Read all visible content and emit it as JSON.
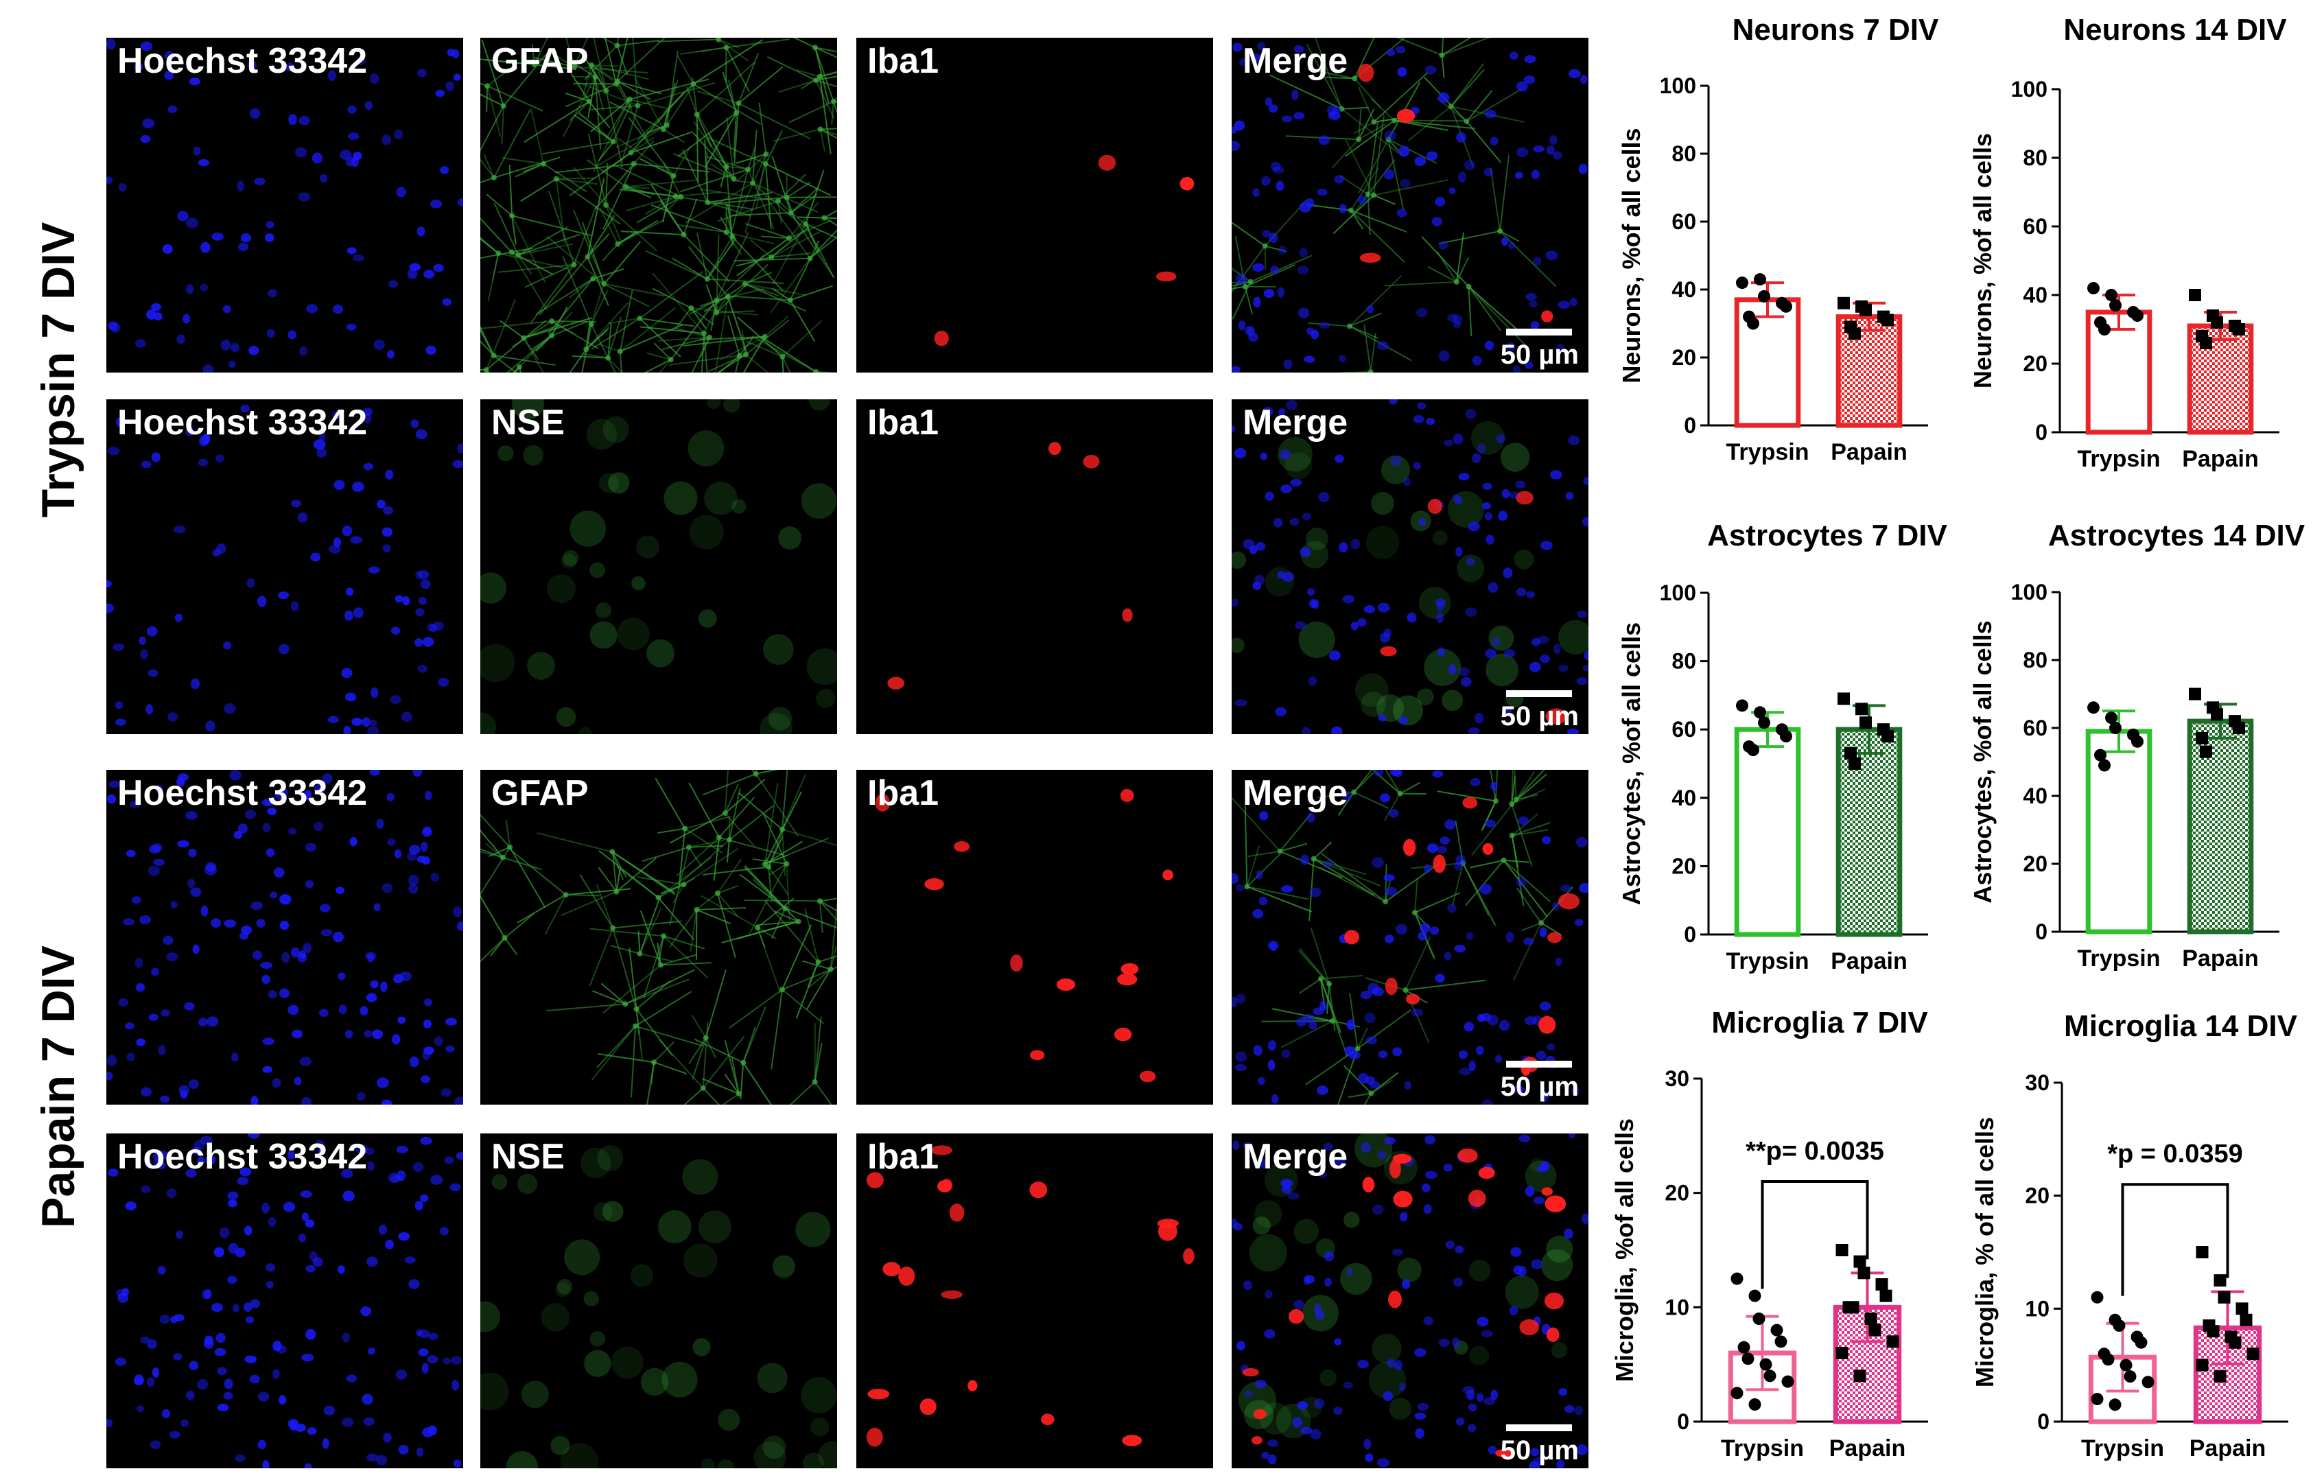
{
  "row_groups": [
    {
      "label": "Trypsin 7 DIV"
    },
    {
      "label": "Papain 7 DIV"
    }
  ],
  "panel_rows": [
    {
      "labels": [
        "Hoechst 33342",
        "GFAP",
        "Iba1",
        "Merge"
      ],
      "scalebar": "50 µm"
    },
    {
      "labels": [
        "Hoechst 33342",
        "NSE",
        "Iba1",
        "Merge"
      ],
      "scalebar": "50 µm"
    },
    {
      "labels": [
        "Hoechst 33342",
        "GFAP",
        "Iba1",
        "Merge"
      ],
      "scalebar": "50 µm"
    },
    {
      "labels": [
        "Hoechst 33342",
        "NSE",
        "Iba1",
        "Merge"
      ],
      "scalebar": "50 µm"
    }
  ],
  "channel_colors": {
    "nuclei": "#1a1aff",
    "astro": "#3aa63a",
    "micro": "#ff2020"
  },
  "chart_data": [
    {
      "type": "bar",
      "title": "Neurons 7 DIV",
      "ylabel": "Neurons, %of all cells",
      "ylim": [
        0,
        100
      ],
      "yticks": [
        0,
        20,
        40,
        60,
        80,
        100
      ],
      "categories": [
        "Trypsin",
        "Papain"
      ],
      "values": [
        37,
        32
      ],
      "errors": [
        5,
        4
      ],
      "colors": [
        "#e8262a",
        "#e8262a"
      ],
      "patterns": [
        "open",
        "hatched"
      ],
      "points": [
        [
          42,
          43,
          38,
          36,
          35,
          32,
          30
        ],
        [
          36,
          35,
          34,
          32,
          31,
          29,
          27
        ]
      ],
      "annotation": ""
    },
    {
      "type": "bar",
      "title": "Neurons 14 DIV",
      "ylabel": "Neurons, %of all cells",
      "ylim": [
        0,
        100
      ],
      "yticks": [
        0,
        20,
        40,
        60,
        80,
        100
      ],
      "categories": [
        "Trypsin",
        "Papain"
      ],
      "values": [
        35,
        31
      ],
      "errors": [
        5,
        4
      ],
      "colors": [
        "#e8262a",
        "#e8262a"
      ],
      "patterns": [
        "open",
        "hatched"
      ],
      "points": [
        [
          42,
          40,
          37,
          35,
          34,
          32,
          30
        ],
        [
          40,
          34,
          32,
          31,
          30,
          28,
          26
        ]
      ],
      "annotation": ""
    },
    {
      "type": "bar",
      "title": "Astrocytes 7 DIV",
      "ylabel": "Astrocytes, %of all cells",
      "ylim": [
        0,
        100
      ],
      "yticks": [
        0,
        20,
        40,
        60,
        80,
        100
      ],
      "categories": [
        "Trypsin",
        "Papain"
      ],
      "values": [
        60,
        60
      ],
      "errors": [
        5,
        7
      ],
      "colors": [
        "#2ec02e",
        "#1e6e2a"
      ],
      "patterns": [
        "open",
        "hatched"
      ],
      "points": [
        [
          67,
          65,
          62,
          60,
          58,
          55,
          54
        ],
        [
          69,
          66,
          62,
          60,
          58,
          53,
          50
        ]
      ],
      "annotation": ""
    },
    {
      "type": "bar",
      "title": "Astrocytes 14 DIV",
      "ylabel": "Astrocytes, %of all cells",
      "ylim": [
        0,
        100
      ],
      "yticks": [
        0,
        20,
        40,
        60,
        80,
        100
      ],
      "categories": [
        "Trypsin",
        "Papain"
      ],
      "values": [
        59,
        62
      ],
      "errors": [
        6,
        5
      ],
      "colors": [
        "#2ec02e",
        "#1e6e2a"
      ],
      "patterns": [
        "open",
        "hatched"
      ],
      "points": [
        [
          66,
          63,
          60,
          58,
          56,
          52,
          49
        ],
        [
          70,
          66,
          64,
          62,
          60,
          57,
          53
        ]
      ],
      "annotation": ""
    },
    {
      "type": "bar",
      "title": "Microglia 7 DIV",
      "ylabel": "Microglia, %of all cells",
      "ylim": [
        0,
        30
      ],
      "yticks": [
        0,
        10,
        20,
        30
      ],
      "categories": [
        "Trypsin",
        "Papain"
      ],
      "values": [
        6,
        10
      ],
      "errors": [
        3.2,
        3
      ],
      "colors": [
        "#f06292",
        "#e0338a"
      ],
      "patterns": [
        "open",
        "hatched"
      ],
      "points": [
        [
          12.5,
          11,
          9,
          8,
          7,
          6.5,
          5.5,
          5,
          4,
          3.5,
          2.5,
          1.5
        ],
        [
          15,
          14,
          13,
          12,
          11,
          10,
          10,
          9,
          8,
          7,
          6,
          4
        ]
      ],
      "annotation": "**p= 0.0035"
    },
    {
      "type": "bar",
      "title": "Microglia 14 DIV",
      "ylabel": "Microglia, % of all cells",
      "ylim": [
        0,
        30
      ],
      "yticks": [
        0,
        10,
        20,
        30
      ],
      "categories": [
        "Trypsin",
        "Papain"
      ],
      "values": [
        5.7,
        8.3
      ],
      "errors": [
        3,
        3.2
      ],
      "colors": [
        "#f06292",
        "#e0338a"
      ],
      "patterns": [
        "open",
        "hatched"
      ],
      "points": [
        [
          11,
          9,
          8.5,
          7.5,
          7,
          6,
          5.5,
          5,
          4,
          3.5,
          2,
          1.5
        ],
        [
          15,
          12.5,
          11,
          10,
          9,
          8.5,
          8,
          7.5,
          7,
          6,
          5,
          4
        ]
      ],
      "annotation": "*p = 0.0359"
    }
  ]
}
